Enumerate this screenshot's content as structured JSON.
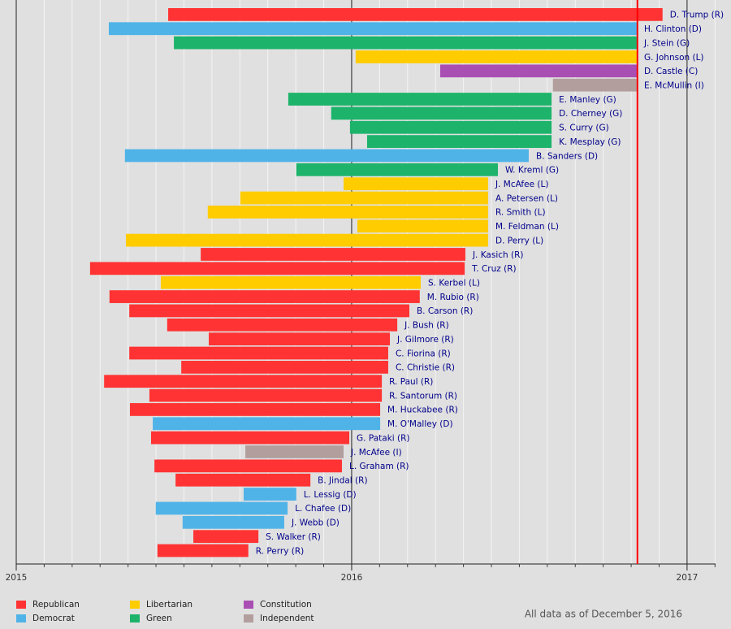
{
  "chart_data": {
    "type": "timeline",
    "xlim": [
      2015,
      2017.085
    ],
    "xticks": [
      2015,
      2016,
      2017
    ],
    "grid": {
      "major": true,
      "minor_per_year": 12
    },
    "current_line": 2016.852,
    "current_line_color": "#ff0000",
    "series": [
      {
        "name": "Republican",
        "color": "#ff3333"
      },
      {
        "name": "Democrat",
        "color": "#4fb3e8"
      },
      {
        "name": "Libertarian",
        "color": "#ffcc00"
      },
      {
        "name": "Green",
        "color": "#1db36b"
      },
      {
        "name": "Constitution",
        "color": "#a94fb3"
      },
      {
        "name": "Independent",
        "color": "#b39e9e"
      }
    ],
    "bars": [
      {
        "label": "D. Trump (R)",
        "party": "Republican",
        "start": 2015.453,
        "end": 2016.927
      },
      {
        "label": "H. Clinton (D)",
        "party": "Democrat",
        "start": 2015.276,
        "end": 2016.85
      },
      {
        "label": "J. Stein (G)",
        "party": "Green",
        "start": 2015.47,
        "end": 2016.85
      },
      {
        "label": "G. Johnson (L)",
        "party": "Libertarian",
        "start": 2016.012,
        "end": 2016.85
      },
      {
        "label": "D. Castle (C)",
        "party": "Constitution",
        "start": 2016.264,
        "end": 2016.85
      },
      {
        "label": "E. McMullin (I)",
        "party": "Independent",
        "start": 2016.6,
        "end": 2016.85
      },
      {
        "label": "E. Manley (G)",
        "party": "Green",
        "start": 2015.811,
        "end": 2016.596
      },
      {
        "label": "D. Cherney (G)",
        "party": "Green",
        "start": 2015.939,
        "end": 2016.596
      },
      {
        "label": "S. Curry (G)",
        "party": "Green",
        "start": 2015.995,
        "end": 2016.596
      },
      {
        "label": "K. Mesplay (G)",
        "party": "Green",
        "start": 2016.046,
        "end": 2016.596
      },
      {
        "label": "B. Sanders (D)",
        "party": "Democrat",
        "start": 2015.324,
        "end": 2016.528
      },
      {
        "label": "W. Kreml (G)",
        "party": "Green",
        "start": 2015.835,
        "end": 2016.436
      },
      {
        "label": "J. McAfee (L)",
        "party": "Libertarian",
        "start": 2015.976,
        "end": 2016.407
      },
      {
        "label": "A. Petersen (L)",
        "party": "Libertarian",
        "start": 2015.668,
        "end": 2016.407
      },
      {
        "label": "R. Smith (L)",
        "party": "Libertarian",
        "start": 2015.571,
        "end": 2016.407
      },
      {
        "label": "M. Feldman (L)",
        "party": "Libertarian",
        "start": 2016.017,
        "end": 2016.407
      },
      {
        "label": "D. Perry (L)",
        "party": "Libertarian",
        "start": 2015.327,
        "end": 2016.407
      },
      {
        "label": "J. Kasich (R)",
        "party": "Republican",
        "start": 2015.55,
        "end": 2016.339
      },
      {
        "label": "T. Cruz (R)",
        "party": "Republican",
        "start": 2015.22,
        "end": 2016.337
      },
      {
        "label": "S. Kerbel (L)",
        "party": "Libertarian",
        "start": 2015.431,
        "end": 2016.206
      },
      {
        "label": "M. Rubio (R)",
        "party": "Republican",
        "start": 2015.278,
        "end": 2016.203
      },
      {
        "label": "B. Carson (R)",
        "party": "Republican",
        "start": 2015.337,
        "end": 2016.172
      },
      {
        "label": "J. Bush (R)",
        "party": "Republican",
        "start": 2015.45,
        "end": 2016.136
      },
      {
        "label": "J. Gilmore (R)",
        "party": "Republican",
        "start": 2015.574,
        "end": 2016.114
      },
      {
        "label": "C. Fiorina (R)",
        "party": "Republican",
        "start": 2015.337,
        "end": 2016.109
      },
      {
        "label": "C. Christie (R)",
        "party": "Republican",
        "start": 2015.492,
        "end": 2016.109
      },
      {
        "label": "R. Paul (R)",
        "party": "Republican",
        "start": 2015.262,
        "end": 2016.09
      },
      {
        "label": "R. Santorum (R)",
        "party": "Republican",
        "start": 2015.397,
        "end": 2016.09
      },
      {
        "label": "M. Huckabee (R)",
        "party": "Republican",
        "start": 2015.339,
        "end": 2016.085
      },
      {
        "label": "M. O'Malley (D)",
        "party": "Democrat",
        "start": 2015.407,
        "end": 2016.085
      },
      {
        "label": "G. Pataki (R)",
        "party": "Republican",
        "start": 2015.402,
        "end": 2015.993
      },
      {
        "label": "J. McAfee (I)",
        "party": "Independent",
        "start": 2015.683,
        "end": 2015.976
      },
      {
        "label": "L. Graham (R)",
        "party": "Republican",
        "start": 2015.412,
        "end": 2015.971
      },
      {
        "label": "B. Jindal (R)",
        "party": "Republican",
        "start": 2015.475,
        "end": 2015.877
      },
      {
        "label": "L. Lessig (D)",
        "party": "Democrat",
        "start": 2015.678,
        "end": 2015.835
      },
      {
        "label": "L. Chafee (D)",
        "party": "Democrat",
        "start": 2015.416,
        "end": 2015.809
      },
      {
        "label": "J. Webb (D)",
        "party": "Democrat",
        "start": 2015.496,
        "end": 2015.799
      },
      {
        "label": "S. Walker (R)",
        "party": "Republican",
        "start": 2015.528,
        "end": 2015.722
      },
      {
        "label": "R. Perry (R)",
        "party": "Republican",
        "start": 2015.421,
        "end": 2015.692
      }
    ],
    "footnote": "All data as of December 5, 2016"
  }
}
